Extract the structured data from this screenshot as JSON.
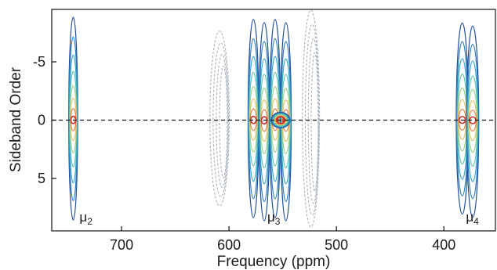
{
  "chart_data": {
    "type": "contour",
    "title": "",
    "xlabel": "Frequency (ppm)",
    "ylabel": "Sideband Order",
    "xlim": [
      765,
      352
    ],
    "ylim": [
      -9.5,
      9.5
    ],
    "x_reversed": true,
    "y_reversed": true,
    "x_ticks": [
      700,
      600,
      500,
      400
    ],
    "y_ticks": [
      -5,
      0,
      5
    ],
    "y_tick_labels": [
      "-5",
      "0",
      "5"
    ],
    "zero_line": {
      "y": 0,
      "style": "dashed",
      "color": "#111111"
    },
    "contour_colors": [
      "#1f4e9c",
      "#2f7fc1",
      "#35a5c9",
      "#5cc3b0",
      "#9ed08a",
      "#e3c26a",
      "#e07f4a",
      "#c8302c"
    ],
    "negative_color": "#aab2bb",
    "peaks": [
      {
        "label": "μ2",
        "base": "μ",
        "sub": "2",
        "x": 745,
        "spread_y": 8.7,
        "width": 4.2,
        "sign": "positive"
      },
      {
        "label": "μ3",
        "base": "μ",
        "sub": "3",
        "x": 560,
        "spread_y": 8.5,
        "width": 16,
        "sign": "positive"
      },
      {
        "label": "μ4",
        "base": "μ",
        "sub": "4",
        "x": 378,
        "spread_y": 8.2,
        "width": 9,
        "sign": "positive"
      },
      {
        "label": "",
        "x": 607,
        "spread_y": 7.5,
        "width": 9,
        "sign": "negative"
      },
      {
        "label": "",
        "x": 522,
        "spread_y": 9.3,
        "width": 8,
        "sign": "negative"
      }
    ]
  }
}
